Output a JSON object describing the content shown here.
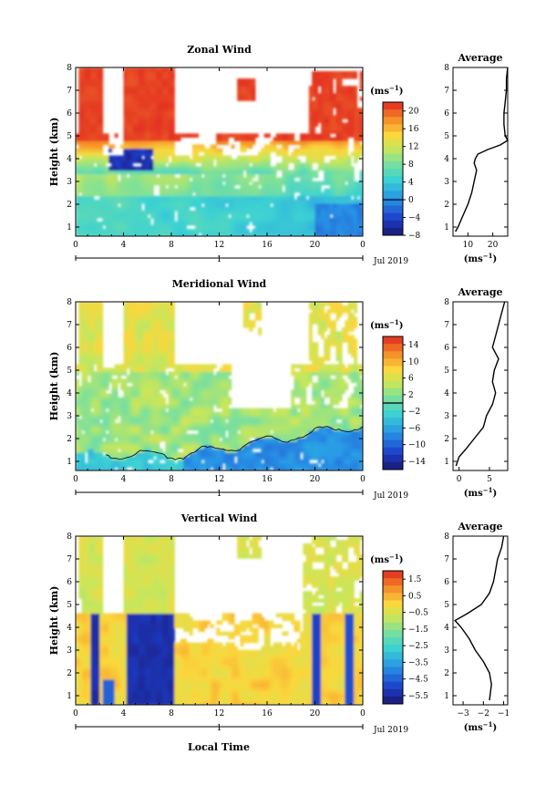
{
  "date_label": "Jul 2019",
  "day_label": "1",
  "xlabel": "Local Time",
  "ylabel": "Height (km)",
  "unit_label": "(ms",
  "unit_exp": "−1",
  "chart_data": [
    {
      "type": "heatmap",
      "title": "Zonal Wind",
      "x_ticks": [
        "0",
        "4",
        "8",
        "12",
        "16",
        "20",
        "0"
      ],
      "x_range_hours": [
        0,
        24
      ],
      "y_ticks": [
        "1",
        "2",
        "3",
        "4",
        "5",
        "6",
        "7",
        "8"
      ],
      "ylim": [
        0.6,
        8
      ],
      "colorbar": {
        "min": -8,
        "max": 22,
        "ticks": [
          "20",
          "16",
          "12",
          "8",
          "4",
          "0",
          "−4",
          "−8"
        ],
        "tick_values": [
          20,
          16,
          12,
          8,
          4,
          0,
          -4,
          -8
        ]
      },
      "profile": {
        "title": "Average",
        "xlim": [
          4,
          26
        ],
        "x_ticks": [
          "10",
          "20"
        ],
        "x_tick_values": [
          10,
          20
        ],
        "y_ticks": [
          "1",
          "2",
          "3",
          "4",
          "5",
          "6",
          "7",
          "8"
        ],
        "heights": [
          0.8,
          1.0,
          1.5,
          2.0,
          2.5,
          3.0,
          3.5,
          3.8,
          4.0,
          4.2,
          4.4,
          4.6,
          4.8,
          5.0,
          5.5,
          6.0,
          6.5,
          7.0,
          7.5,
          8.0
        ],
        "values": [
          5,
          6,
          8,
          10,
          11.5,
          12.5,
          13.5,
          12.5,
          13,
          14,
          18,
          23,
          26,
          25,
          24.5,
          24.5,
          25,
          25.5,
          25.5,
          26
        ]
      }
    },
    {
      "type": "heatmap",
      "title": "Meridional Wind",
      "x_ticks": [
        "0",
        "4",
        "8",
        "12",
        "16",
        "20",
        "0"
      ],
      "x_range_hours": [
        0,
        24
      ],
      "y_ticks": [
        "1",
        "2",
        "3",
        "4",
        "5",
        "6",
        "7",
        "8"
      ],
      "ylim": [
        0.6,
        8
      ],
      "colorbar": {
        "min": -16,
        "max": 16,
        "ticks": [
          "14",
          "10",
          "6",
          "2",
          "−2",
          "−6",
          "−10",
          "−14"
        ],
        "tick_values": [
          14,
          10,
          6,
          2,
          -2,
          -6,
          -10,
          -14
        ]
      },
      "profile": {
        "title": "Average",
        "xlim": [
          -1,
          8
        ],
        "x_ticks": [
          "0",
          "5"
        ],
        "x_tick_values": [
          0,
          5
        ],
        "y_ticks": [
          "1",
          "2",
          "3",
          "4",
          "5",
          "6",
          "7",
          "8"
        ],
        "heights": [
          0.8,
          1.2,
          1.5,
          2.0,
          2.5,
          3.0,
          3.5,
          4.0,
          4.5,
          5.0,
          5.5,
          6.0,
          6.5,
          7.0,
          7.5,
          8.0
        ],
        "values": [
          -0.5,
          0,
          1,
          2.5,
          4,
          4.5,
          5.5,
          6,
          5.5,
          5.8,
          6.5,
          5.5,
          6,
          6.5,
          7,
          7.5
        ]
      }
    },
    {
      "type": "heatmap",
      "title": "Vertical Wind",
      "x_ticks": [
        "0",
        "4",
        "8",
        "12",
        "16",
        "20",
        "0"
      ],
      "x_range_hours": [
        0,
        24
      ],
      "y_ticks": [
        "1",
        "2",
        "3",
        "4",
        "5",
        "6",
        "7",
        "8"
      ],
      "ylim": [
        0.6,
        8
      ],
      "colorbar": {
        "min": -6,
        "max": 2,
        "ticks": [
          "1.5",
          "0.5",
          "−0.5",
          "−1.5",
          "−2.5",
          "−3.5",
          "−4.5",
          "−5.5"
        ],
        "tick_values": [
          1.5,
          0.5,
          -0.5,
          -1.5,
          -2.5,
          -3.5,
          -4.5,
          -5.5
        ]
      },
      "profile": {
        "title": "Average",
        "xlim": [
          -3.5,
          -0.8
        ],
        "x_ticks": [
          "−3",
          "−2",
          "−1"
        ],
        "x_tick_values": [
          -3,
          -2,
          -1
        ],
        "y_ticks": [
          "1",
          "2",
          "3",
          "4",
          "5",
          "6",
          "7",
          "8"
        ],
        "heights": [
          0.8,
          1.5,
          2.0,
          2.5,
          3.0,
          3.5,
          4.0,
          4.3,
          4.6,
          5.0,
          5.5,
          6.0,
          6.5,
          7.0,
          7.5,
          8.0
        ],
        "values": [
          -1.7,
          -1.6,
          -1.7,
          -2.0,
          -2.4,
          -2.7,
          -3.1,
          -3.4,
          -2.8,
          -2.1,
          -1.7,
          -1.5,
          -1.4,
          -1.3,
          -1.1,
          -1.0
        ]
      }
    }
  ]
}
